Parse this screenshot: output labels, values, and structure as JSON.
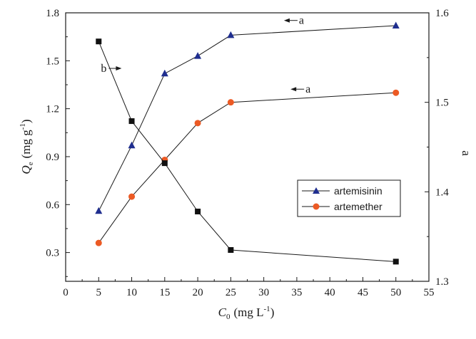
{
  "chart_data": {
    "type": "line",
    "title": "",
    "xlabel": "C",
    "xlabel_sub": "0",
    "xlabel_unit": "(mg L",
    "xlabel_unit_sup": "-1",
    "xlabel_unit_end": ")",
    "ylabel": "Q",
    "ylabel_sub": "e",
    "ylabel_unit": "(mg g",
    "ylabel_unit_sup": "-1",
    "ylabel_unit_end": ")",
    "y2label": "a",
    "xlim": [
      0,
      55
    ],
    "ylim": [
      0.12,
      1.8
    ],
    "y2lim": [
      1.3,
      1.6
    ],
    "xticks": [
      0,
      5,
      10,
      15,
      20,
      25,
      30,
      35,
      40,
      45,
      50,
      55
    ],
    "yticks": [
      0.3,
      0.6,
      0.9,
      1.2,
      1.5,
      1.8
    ],
    "y2ticks": [
      1.3,
      1.4,
      1.5,
      1.6
    ],
    "legend_position": "right-center",
    "grid": false,
    "series": [
      {
        "name": "artemisinin",
        "axis": "left",
        "marker": "triangle",
        "color": "#1f2e8f",
        "x": [
          5,
          10,
          15,
          20,
          25,
          50
        ],
        "values": [
          0.56,
          0.97,
          1.42,
          1.53,
          1.66,
          1.72
        ],
        "in_legend": true
      },
      {
        "name": "artemether",
        "axis": "left",
        "marker": "circle",
        "color": "#ec5a24",
        "x": [
          5,
          10,
          15,
          20,
          25,
          50
        ],
        "values": [
          0.36,
          0.65,
          0.88,
          1.11,
          1.24,
          1.3
        ],
        "in_legend": true
      },
      {
        "name": "a",
        "axis": "right",
        "marker": "square",
        "color": "#111111",
        "x": [
          5,
          10,
          15,
          20,
          25,
          50
        ],
        "values": [
          1.568,
          1.479,
          1.432,
          1.378,
          1.335,
          1.322
        ],
        "in_legend": false
      }
    ],
    "annotations": [
      {
        "text": "a",
        "arrow": "left",
        "x": 35,
        "y": 1.73,
        "axis": "left"
      },
      {
        "text": "a",
        "arrow": "left",
        "x": 36,
        "y": 1.3,
        "axis": "left"
      },
      {
        "text": "b",
        "arrow": "right",
        "x": 7.5,
        "y": 1.43,
        "axis": "left"
      }
    ]
  }
}
